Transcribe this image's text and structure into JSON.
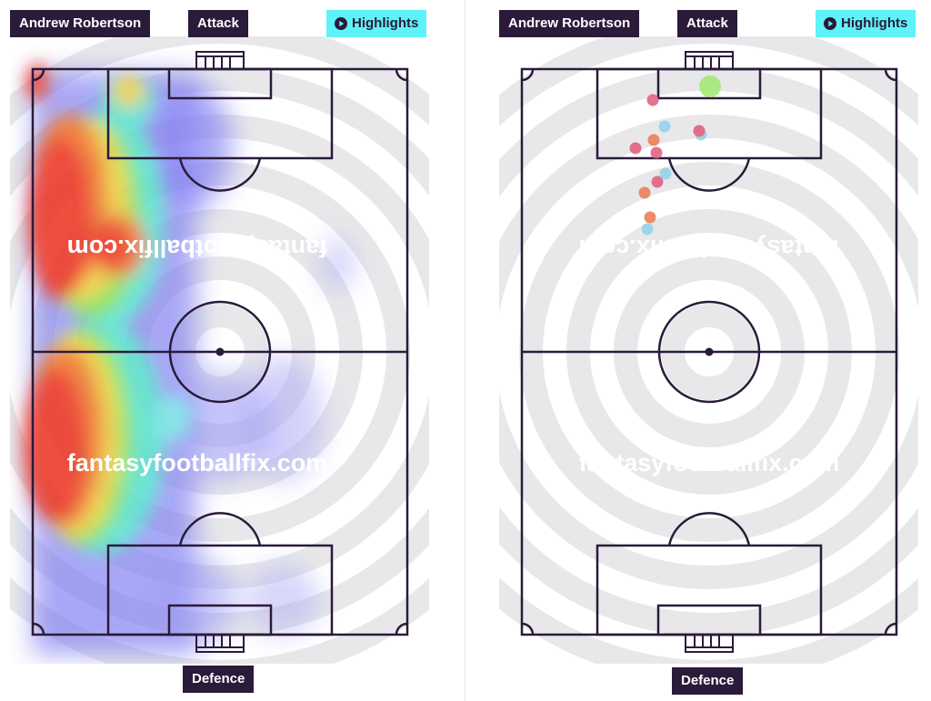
{
  "panels": [
    {
      "id": "heatmap",
      "player_name": "Andrew Robertson",
      "attack_label": "Attack",
      "defence_label": "Defence",
      "highlights_label": "Highlights",
      "watermark_text": "fantasyfootballfix.com",
      "watermark_mirrored_text": "fantasyfootballfix.com"
    },
    {
      "id": "shotmap",
      "player_name": "Andrew Robertson",
      "attack_label": "Attack",
      "defence_label": "Defence",
      "highlights_label": "Highlights",
      "watermark_text": "fantasyfootballfix.com",
      "watermark_mirrored_text": "fantasyfootballfix.com"
    }
  ],
  "colors": {
    "tag_bg": "#2b1a3a",
    "tag_text": "#ffffff",
    "highlights_bg": "#5ef2f9",
    "pitch_lines": "#2b1a3a",
    "ring_grey": "#e8e8ea",
    "shot_pink": "#e05a7a",
    "shot_orange": "#ec7a52",
    "shot_blue": "#8ed2ea",
    "goal_green": "#9fe870"
  },
  "icons": {
    "play": "play-circle-icon"
  }
}
